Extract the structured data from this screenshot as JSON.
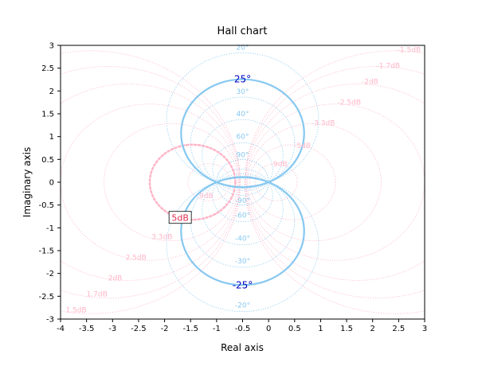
{
  "chart_data": {
    "type": "line",
    "title": "Hall chart",
    "xlabel": "Real axis",
    "ylabel": "Imaginary axis",
    "xlim": [
      -4,
      3
    ],
    "ylim": [
      -3,
      3
    ],
    "x_ticks": [
      "-4",
      "-3.5",
      "-3",
      "-2.5",
      "-2",
      "-1.5",
      "-1",
      "-0.5",
      "0",
      "0.5",
      "1",
      "1.5",
      "2",
      "2.5",
      "3"
    ],
    "x_tick_values": [
      -4,
      -3.5,
      -3,
      -2.5,
      -2,
      -1.5,
      -1,
      -0.5,
      0,
      0.5,
      1,
      1.5,
      2,
      2.5,
      3
    ],
    "y_ticks": [
      "-3",
      "-2.5",
      "-2",
      "-1.5",
      "-1",
      "-0.5",
      "0",
      "0.5",
      "1",
      "1.5",
      "2",
      "2.5",
      "3"
    ],
    "y_tick_values": [
      -3,
      -2.5,
      -2,
      -1.5,
      -1,
      -0.5,
      0,
      0.5,
      1,
      1.5,
      2,
      2.5,
      3
    ],
    "grid": false,
    "colors": {
      "magnitude_contours": "#ffb6c8",
      "phase_contours": "#87c8f0",
      "highlight_magnitude": "#ffb6c8",
      "highlight_phase": "#87c8f0",
      "highlight_label": "#0000c0",
      "axes": "#000000"
    },
    "magnitude_contours_db": [
      -1.5,
      -1.7,
      -2,
      -2.5,
      -3.3,
      -5,
      -9,
      9,
      5,
      3.3,
      2.5,
      2,
      1.7,
      1.5
    ],
    "magnitude_labels": [
      {
        "db": -1.5,
        "text": "-1.5dB",
        "x": 2.7,
        "y": 2.85
      },
      {
        "db": -1.7,
        "text": "-1.7dB",
        "x": 2.3,
        "y": 2.5
      },
      {
        "db": -2,
        "text": "-2dB",
        "x": 1.95,
        "y": 2.15
      },
      {
        "db": -2.5,
        "text": "-2.5dB",
        "x": 1.55,
        "y": 1.7
      },
      {
        "db": -3.3,
        "text": "-3.3dB",
        "x": 1.05,
        "y": 1.25
      },
      {
        "db": -5,
        "text": "-5dB",
        "x": 0.65,
        "y": 0.75
      },
      {
        "db": -9,
        "text": "-9dB",
        "x": 0.2,
        "y": 0.35
      },
      {
        "db": 9,
        "text": "9dB",
        "x": -1.2,
        "y": -0.35
      },
      {
        "db": 3.3,
        "text": "3.3dB",
        "x": -2.05,
        "y": -1.25
      },
      {
        "db": 2.5,
        "text": "2.5dB",
        "x": -2.55,
        "y": -1.7
      },
      {
        "db": 2,
        "text": "2dB",
        "x": -2.95,
        "y": -2.15
      },
      {
        "db": 1.7,
        "text": "1.7dB",
        "x": -3.3,
        "y": -2.5
      },
      {
        "db": 1.5,
        "text": "1.5dB",
        "x": -3.7,
        "y": -2.85
      }
    ],
    "phase_contours_deg": [
      20,
      25,
      30,
      40,
      60,
      90,
      -90,
      -60,
      -40,
      -30,
      -25,
      -20
    ],
    "phase_labels": [
      {
        "deg": 20,
        "text": "20°",
        "x": -0.5,
        "y": 2.9
      },
      {
        "deg": 30,
        "text": "30°",
        "x": -0.5,
        "y": 1.94
      },
      {
        "deg": 40,
        "text": "40°",
        "x": -0.5,
        "y": 1.45
      },
      {
        "deg": 60,
        "text": "60°",
        "x": -0.5,
        "y": 0.95
      },
      {
        "deg": 90,
        "text": "90°",
        "x": -0.5,
        "y": 0.55
      },
      {
        "deg": -90,
        "text": "-90°",
        "x": -0.5,
        "y": -0.45
      },
      {
        "deg": -60,
        "text": "-60°",
        "x": -0.5,
        "y": -0.78
      },
      {
        "deg": -40,
        "text": "-40°",
        "x": -0.5,
        "y": -1.28
      },
      {
        "deg": -30,
        "text": "-30°",
        "x": -0.5,
        "y": -1.78
      },
      {
        "deg": -20,
        "text": "-20°",
        "x": -0.5,
        "y": -2.75
      }
    ],
    "highlights": {
      "magnitude_db": 5,
      "magnitude_label": "5dB",
      "phase_deg": 25,
      "phase_label_pos": "25°",
      "phase_label_neg": "-25°"
    }
  }
}
